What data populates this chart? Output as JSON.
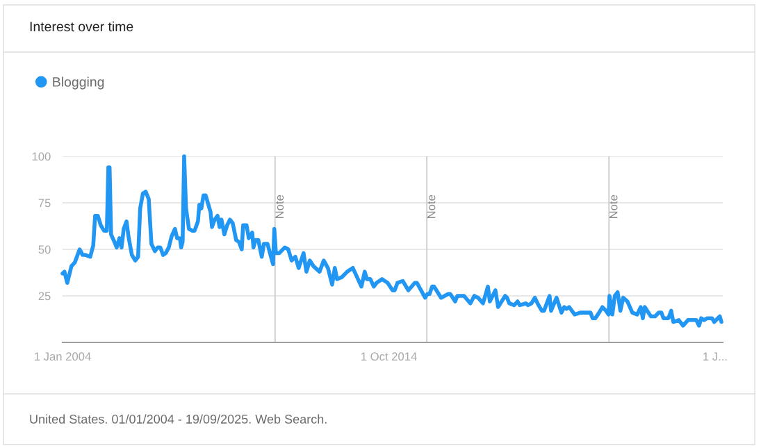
{
  "chart_data": {
    "type": "line",
    "title": "Interest over time",
    "annotations": [
      "United States. 01/01/2004 - 19/09/2025. Web Search."
    ],
    "x": [
      "2004-01-01",
      "2004-01-24",
      "2004-02-27",
      "2004-04-17",
      "2004-05-28",
      "2004-07-25",
      "2004-08-28",
      "2004-10-03",
      "2004-11-29",
      "2005-01-04",
      "2005-01-27",
      "2005-03-01",
      "2005-04-04",
      "2005-05-14",
      "2005-06-17",
      "2005-07-05",
      "2005-07-20",
      "2005-08-07",
      "2005-09-26",
      "2005-10-13",
      "2005-11-16",
      "2005-12-11",
      "2006-01-06",
      "2006-02-09",
      "2006-03-04",
      "2006-04-14",
      "2006-05-25",
      "2006-06-28",
      "2006-07-23",
      "2006-08-25",
      "2006-09-28",
      "2006-11-03",
      "2006-12-05",
      "2007-01-16",
      "2007-02-19",
      "2007-03-22",
      "2007-04-25",
      "2007-05-27",
      "2007-07-02",
      "2007-08-05",
      "2007-09-15",
      "2007-10-10",
      "2007-11-13",
      "2007-11-28",
      "2007-12-16",
      "2008-01-03",
      "2008-01-26",
      "2008-03-01",
      "2008-04-11",
      "2008-05-07",
      "2008-06-17",
      "2008-07-04",
      "2008-07-28",
      "2008-08-23",
      "2008-09-18",
      "2008-11-16",
      "2008-12-03",
      "2009-01-05",
      "2009-02-08",
      "2009-03-04",
      "2009-03-27",
      "2009-05-01",
      "2009-06-04",
      "2009-07-07",
      "2009-08-10",
      "2009-09-20",
      "2009-10-23",
      "2009-11-26",
      "2009-12-13",
      "2010-01-23",
      "2010-02-19",
      "2010-04-01",
      "2010-04-16",
      "2010-05-11",
      "2010-06-14",
      "2010-07-25",
      "2010-08-20",
      "2010-10-02",
      "2010-11-13",
      "2010-12-08",
      "2010-12-23",
      "2011-01-11",
      "2011-02-21",
      "2011-04-27",
      "2011-06-09",
      "2011-07-19",
      "2011-09-02",
      "2011-10-12",
      "2011-12-10",
      "2012-01-13",
      "2012-02-23",
      "2012-04-06",
      "2012-06-19",
      "2012-08-09",
      "2012-09-28",
      "2012-11-18",
      "2012-12-20",
      "2013-01-16",
      "2013-03-13",
      "2013-05-19",
      "2013-07-25",
      "2013-11-05",
      "2013-12-15",
      "2014-01-10",
      "2014-02-21",
      "2014-04-03",
      "2014-05-06",
      "2014-07-11",
      "2014-09-17",
      "2014-11-15",
      "2014-12-10",
      "2015-01-13",
      "2015-03-18",
      "2015-05-24",
      "2015-08-09",
      "2015-09-04",
      "2015-12-12",
      "2016-01-08",
      "2016-02-02",
      "2016-03-05",
      "2016-03-28",
      "2016-06-21",
      "2016-09-14",
      "2016-10-09",
      "2016-12-07",
      "2017-01-02",
      "2017-03-23",
      "2017-06-08",
      "2017-07-26",
      "2017-09-09",
      "2017-11-07",
      "2018-01-05",
      "2018-01-28",
      "2018-04-05",
      "2018-05-08",
      "2018-06-19",
      "2018-08-01",
      "2018-08-24",
      "2018-09-19",
      "2018-11-17",
      "2018-12-28",
      "2019-01-23",
      "2019-04-08",
      "2019-05-03",
      "2019-06-13",
      "2019-07-24",
      "2019-09-06",
      "2019-10-17",
      "2019-11-11",
      "2020-01-17",
      "2020-02-04",
      "2020-04-10",
      "2020-06-08",
      "2020-07-11",
      "2020-08-06",
      "2020-09-09",
      "2020-11-14",
      "2021-01-20",
      "2021-05-23",
      "2021-06-18",
      "2021-07-21",
      "2021-09-04",
      "2021-10-14",
      "2021-11-25",
      "2021-12-27",
      "2022-01-07",
      "2022-02-10",
      "2022-03-12",
      "2022-04-15",
      "2022-05-18",
      "2022-06-21",
      "2022-08-11",
      "2022-10-09",
      "2022-12-07",
      "2023-01-17",
      "2023-02-12",
      "2023-03-07",
      "2023-05-20",
      "2023-07-10",
      "2023-08-21",
      "2023-09-24",
      "2023-10-19",
      "2023-12-17",
      "2024-01-19",
      "2024-02-14",
      "2024-04-20",
      "2024-06-10",
      "2024-08-08",
      "2024-11-16",
      "2024-12-19",
      "2025-01-14",
      "2025-02-17",
      "2025-03-28",
      "2025-05-25",
      "2025-06-20",
      "2025-08-26",
      "2025-09-15"
    ],
    "series": [
      {
        "name": "Blogging",
        "color": "#2196f3",
        "values": [
          37,
          38,
          32,
          41,
          43,
          50,
          47,
          47,
          46,
          52,
          68,
          68,
          63,
          60,
          60,
          94,
          94,
          58,
          53,
          51,
          56,
          51,
          61,
          65,
          57,
          47,
          44,
          46,
          72,
          80,
          81,
          77,
          53,
          49,
          51,
          51,
          47,
          48,
          51,
          57,
          61,
          56,
          56,
          51,
          54,
          100,
          72,
          61,
          60,
          60,
          65,
          74,
          72,
          79,
          79,
          70,
          62,
          66,
          68,
          62,
          66,
          58,
          63,
          66,
          64,
          55,
          54,
          50,
          63,
          63,
          56,
          59,
          51,
          55,
          55,
          46,
          53,
          53,
          46,
          42,
          61,
          48,
          48,
          51,
          50,
          44,
          46,
          40,
          48,
          38,
          44,
          41,
          38,
          44,
          40,
          31,
          40,
          34,
          35,
          38,
          40,
          30,
          38,
          34,
          34,
          30,
          32,
          34,
          32,
          28,
          28,
          32,
          33,
          28,
          32,
          32,
          24,
          26,
          26,
          30,
          30,
          24,
          26,
          26,
          22,
          25,
          25,
          21,
          25,
          24,
          21,
          30,
          22,
          28,
          19,
          22,
          25,
          24,
          21,
          20,
          22,
          20,
          21,
          20,
          21,
          24,
          20,
          17,
          17,
          25,
          17,
          24,
          16,
          19,
          18,
          19,
          15,
          16,
          16,
          13,
          13,
          16,
          19,
          17,
          15,
          25,
          15,
          25,
          27,
          17,
          24,
          22,
          16,
          15,
          19,
          13,
          19,
          14,
          14,
          16,
          16,
          13,
          13,
          17,
          11,
          12,
          9,
          12,
          12,
          9,
          13,
          12,
          13,
          13,
          11,
          14,
          11
        ]
      }
    ],
    "xlim": [
      "2004-01-01",
      "2025-10-01"
    ],
    "xticks": [
      {
        "value": "2004-01-01",
        "label": "1 Jan 2004"
      },
      {
        "value": "2014-10-01",
        "label": "1 Oct 2014"
      },
      {
        "value": "2025-07-01",
        "label": "1 J..."
      }
    ],
    "ylim": [
      0,
      100
    ],
    "yticks": [
      {
        "value": 0,
        "label": null
      },
      25,
      50,
      75,
      100
    ],
    "ref_lines": [
      {
        "axis": "x",
        "value": "2011-01-01",
        "label": "Note",
        "color": "#cccccc"
      },
      {
        "axis": "x",
        "value": "2016-01-01",
        "label": "Note",
        "color": "#cccccc"
      },
      {
        "axis": "x",
        "value": "2022-01-01",
        "label": "Note",
        "color": "#cccccc"
      }
    ],
    "grid": "y",
    "legend": "top left",
    "marker": "none",
    "line_style": "solid"
  }
}
